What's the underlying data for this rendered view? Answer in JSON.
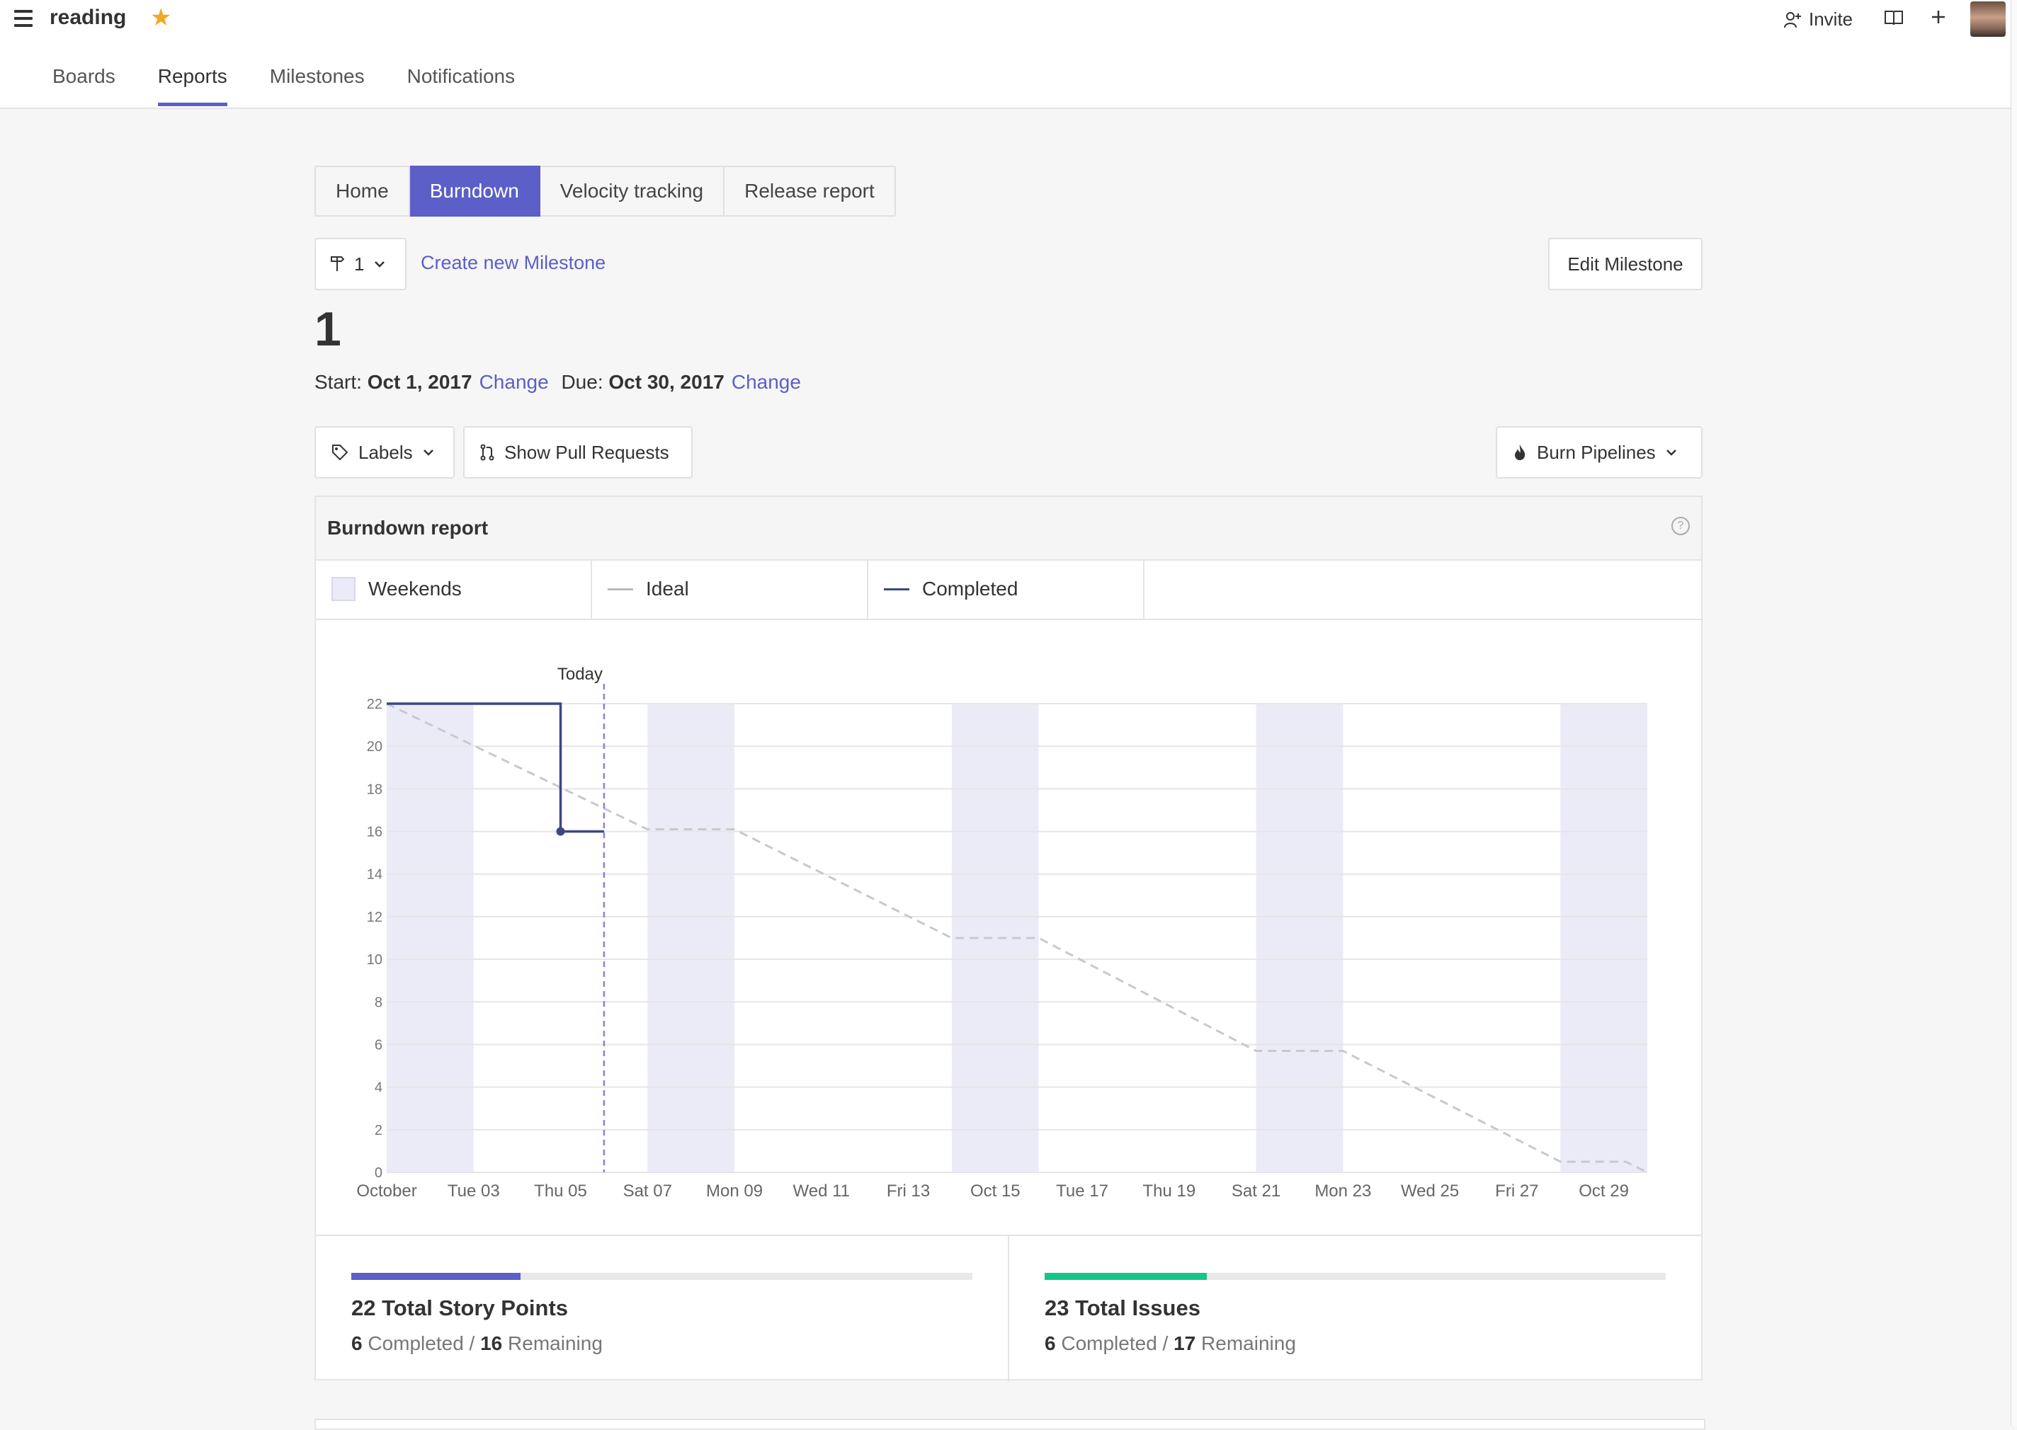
{
  "workspace": {
    "name": "reading"
  },
  "header": {
    "invite_label": "Invite"
  },
  "nav": {
    "tabs": [
      "Boards",
      "Reports",
      "Milestones",
      "Notifications"
    ],
    "active": "Reports"
  },
  "report_tabs": {
    "tabs": [
      "Home",
      "Burndown",
      "Velocity tracking",
      "Release report"
    ],
    "active": "Burndown"
  },
  "milestone": {
    "selector_value": "1",
    "create_link": "Create new Milestone",
    "edit_button": "Edit Milestone",
    "title": "1",
    "start_label": "Start:",
    "start_date": "Oct 1, 2017",
    "due_label": "Due:",
    "due_date": "Oct 30, 2017",
    "change_label": "Change"
  },
  "filters": {
    "labels": "Labels",
    "pull_requests": "Show Pull Requests",
    "burn_pipelines": "Burn Pipelines"
  },
  "report": {
    "title": "Burndown report",
    "legend": [
      "Weekends",
      "Ideal",
      "Completed"
    ],
    "today_label": "Today"
  },
  "colors": {
    "accent": "#5b5fc7",
    "completed_line": "#3c4785",
    "ideal_line": "#c8c8d0",
    "weekend_band": "#ebebf7",
    "issues_bar": "#14c68a"
  },
  "chart_data": {
    "type": "line",
    "x_tick_labels": [
      "October",
      "Tue 03",
      "Thu 05",
      "Sat 07",
      "Mon 09",
      "Wed 11",
      "Fri 13",
      "Oct 15",
      "Tue 17",
      "Thu 19",
      "Sat 21",
      "Mon 23",
      "Wed 25",
      "Fri 27",
      "Oct 29"
    ],
    "y_ticks": [
      0,
      2,
      4,
      6,
      8,
      10,
      12,
      14,
      16,
      18,
      20,
      22
    ],
    "ylim": [
      0,
      22
    ],
    "xlim": [
      "2017-10-01",
      "2017-10-30"
    ],
    "today": "2017-10-06",
    "weekends": [
      [
        "2017-10-01",
        "2017-10-03"
      ],
      [
        "2017-10-07",
        "2017-10-09"
      ],
      [
        "2017-10-14",
        "2017-10-16"
      ],
      [
        "2017-10-21",
        "2017-10-23"
      ],
      [
        "2017-10-28",
        "2017-10-30"
      ]
    ],
    "series": [
      {
        "name": "Ideal",
        "x": [
          "2017-10-01",
          "2017-10-07",
          "2017-10-09",
          "2017-10-14",
          "2017-10-16",
          "2017-10-21",
          "2017-10-23",
          "2017-10-28",
          "2017-10-29.5",
          "2017-10-30"
        ],
        "y": [
          22,
          16.1,
          16.1,
          11.0,
          11.0,
          5.7,
          5.7,
          0.5,
          0.5,
          0
        ]
      },
      {
        "name": "Completed",
        "x": [
          "2017-10-01",
          "2017-10-05",
          "2017-10-05",
          "2017-10-06"
        ],
        "y": [
          22,
          22,
          16,
          16
        ]
      }
    ],
    "grid": true
  },
  "stats": {
    "points": {
      "title": "22 Total Story Points",
      "completed": "6",
      "completed_label": "Completed",
      "remaining": "16",
      "remaining_label": "Remaining",
      "fraction": 0.273
    },
    "issues": {
      "title": "23 Total Issues",
      "completed": "6",
      "completed_label": "Completed",
      "remaining": "17",
      "remaining_label": "Remaining",
      "fraction": 0.261
    }
  }
}
